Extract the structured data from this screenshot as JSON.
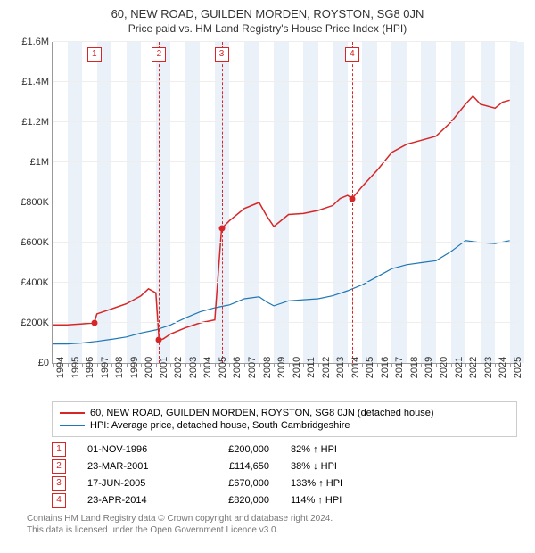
{
  "title": "60, NEW ROAD, GUILDEN MORDEN, ROYSTON, SG8 0JN",
  "subtitle": "Price paid vs. HM Land Registry's House Price Index (HPI)",
  "chart": {
    "type": "line",
    "x_years": [
      1994,
      1995,
      1996,
      1997,
      1998,
      1999,
      2000,
      2001,
      2002,
      2003,
      2004,
      2005,
      2006,
      2007,
      2008,
      2009,
      2010,
      2011,
      2012,
      2013,
      2014,
      2015,
      2016,
      2017,
      2018,
      2019,
      2020,
      2021,
      2022,
      2023,
      2024,
      2025
    ],
    "xlim": [
      1994,
      2025.5
    ],
    "ylim": [
      0,
      1600000
    ],
    "ytick_step": 200000,
    "y_labels": [
      "£0",
      "£200K",
      "£400K",
      "£600K",
      "£800K",
      "£1M",
      "£1.2M",
      "£1.4M",
      "£1.6M"
    ],
    "background_color": "#ffffff",
    "stripe_color": "#eaf1f9",
    "grid_color": "#eeeeee",
    "axis_color": "#999999",
    "series": {
      "property": {
        "name": "60, NEW ROAD, GUILDEN MORDEN, ROYSTON, SG8 0JN (detached house)",
        "color": "#d62728",
        "width": 1.5,
        "points": [
          [
            1994,
            190000
          ],
          [
            1995,
            190000
          ],
          [
            1996,
            195000
          ],
          [
            1996.83,
            200000
          ],
          [
            1997,
            245000
          ],
          [
            1998,
            270000
          ],
          [
            1999,
            295000
          ],
          [
            2000,
            335000
          ],
          [
            2000.5,
            370000
          ],
          [
            2001,
            350000
          ],
          [
            2001.22,
            114650
          ],
          [
            2001.5,
            120000
          ],
          [
            2002,
            145000
          ],
          [
            2003,
            175000
          ],
          [
            2004,
            200000
          ],
          [
            2005,
            215000
          ],
          [
            2005.46,
            670000
          ],
          [
            2006,
            710000
          ],
          [
            2007,
            770000
          ],
          [
            2008,
            800000
          ],
          [
            2008.5,
            735000
          ],
          [
            2009,
            680000
          ],
          [
            2010,
            740000
          ],
          [
            2011,
            745000
          ],
          [
            2012,
            760000
          ],
          [
            2013,
            785000
          ],
          [
            2013.5,
            820000
          ],
          [
            2014,
            835000
          ],
          [
            2014.31,
            820000
          ],
          [
            2015,
            880000
          ],
          [
            2016,
            960000
          ],
          [
            2017,
            1050000
          ],
          [
            2018,
            1090000
          ],
          [
            2019,
            1110000
          ],
          [
            2020,
            1130000
          ],
          [
            2021,
            1200000
          ],
          [
            2022,
            1290000
          ],
          [
            2022.5,
            1330000
          ],
          [
            2023,
            1290000
          ],
          [
            2024,
            1270000
          ],
          [
            2024.5,
            1300000
          ],
          [
            2025,
            1310000
          ]
        ]
      },
      "hpi": {
        "name": "HPI: Average price, detached house, South Cambridgeshire",
        "color": "#1f77b4",
        "width": 1.2,
        "points": [
          [
            1994,
            95000
          ],
          [
            1995,
            95000
          ],
          [
            1996,
            100000
          ],
          [
            1997,
            108000
          ],
          [
            1998,
            118000
          ],
          [
            1999,
            130000
          ],
          [
            2000,
            150000
          ],
          [
            2001,
            165000
          ],
          [
            2002,
            190000
          ],
          [
            2003,
            225000
          ],
          [
            2004,
            255000
          ],
          [
            2005,
            275000
          ],
          [
            2006,
            290000
          ],
          [
            2007,
            320000
          ],
          [
            2008,
            330000
          ],
          [
            2008.5,
            305000
          ],
          [
            2009,
            285000
          ],
          [
            2010,
            310000
          ],
          [
            2011,
            315000
          ],
          [
            2012,
            320000
          ],
          [
            2013,
            335000
          ],
          [
            2014,
            360000
          ],
          [
            2015,
            390000
          ],
          [
            2016,
            430000
          ],
          [
            2017,
            470000
          ],
          [
            2018,
            490000
          ],
          [
            2019,
            500000
          ],
          [
            2020,
            510000
          ],
          [
            2021,
            555000
          ],
          [
            2022,
            610000
          ],
          [
            2023,
            600000
          ],
          [
            2024,
            595000
          ],
          [
            2025,
            610000
          ]
        ]
      }
    },
    "markers": [
      {
        "n": "1",
        "x": 1996.83,
        "y": 200000,
        "color": "#d62728"
      },
      {
        "n": "2",
        "x": 2001.22,
        "y": 114650,
        "color": "#d62728"
      },
      {
        "n": "3",
        "x": 2005.46,
        "y": 670000,
        "color": "#d62728"
      },
      {
        "n": "4",
        "x": 2014.31,
        "y": 820000,
        "color": "#d62728"
      }
    ]
  },
  "legend": {
    "items": [
      {
        "color": "#d62728",
        "label": "60, NEW ROAD, GUILDEN MORDEN, ROYSTON, SG8 0JN (detached house)"
      },
      {
        "color": "#1f77b4",
        "label": "HPI: Average price, detached house, South Cambridgeshire"
      }
    ]
  },
  "transactions": [
    {
      "n": "1",
      "date": "01-NOV-1996",
      "price": "£200,000",
      "pct": "82% ↑ HPI",
      "color": "#d62728"
    },
    {
      "n": "2",
      "date": "23-MAR-2001",
      "price": "£114,650",
      "pct": "38% ↓ HPI",
      "color": "#d62728"
    },
    {
      "n": "3",
      "date": "17-JUN-2005",
      "price": "£670,000",
      "pct": "133% ↑ HPI",
      "color": "#d62728"
    },
    {
      "n": "4",
      "date": "23-APR-2014",
      "price": "£820,000",
      "pct": "114% ↑ HPI",
      "color": "#d62728"
    }
  ],
  "footer": {
    "line1": "Contains HM Land Registry data © Crown copyright and database right 2024.",
    "line2": "This data is licensed under the Open Government Licence v3.0."
  }
}
